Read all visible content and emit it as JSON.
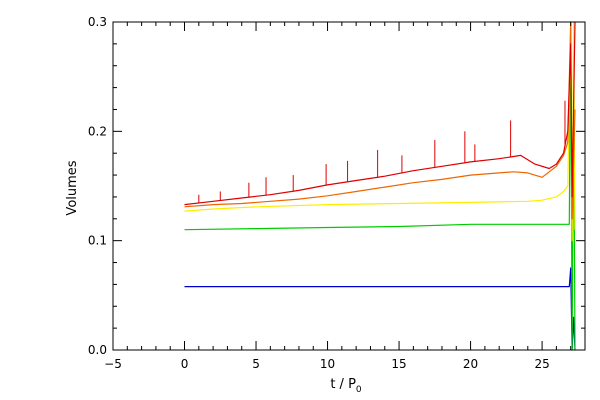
{
  "chart_data": {
    "type": "line",
    "title": "",
    "xlabel": "t / P",
    "xlabel_sub": "0",
    "ylabel": "Volumes",
    "xlim": [
      -5,
      28
    ],
    "ylim": [
      0.0,
      0.3
    ],
    "x_ticks": [
      -5,
      0,
      5,
      10,
      15,
      20,
      25
    ],
    "y_ticks": [
      0.0,
      0.1,
      0.2,
      0.3
    ],
    "x_tick_labels": [
      "−5",
      "0",
      "5",
      "10",
      "15",
      "20",
      "25"
    ],
    "y_tick_labels": [
      "0.0",
      "0.1",
      "0.2",
      "0.3"
    ],
    "x_minor_step": 1,
    "y_minor_step": 0.02,
    "grid": false,
    "legend": "none",
    "series": [
      {
        "color": "#0000cc",
        "x": [
          0,
          5,
          10,
          15,
          20,
          25,
          26.9,
          27.0,
          27.1,
          27.2,
          27.3
        ],
        "y": [
          0.058,
          0.058,
          0.058,
          0.058,
          0.058,
          0.058,
          0.058,
          0.075,
          0.0,
          0.03,
          0.0
        ]
      },
      {
        "color": "#00cc00",
        "x": [
          0,
          5,
          10,
          15,
          20,
          25,
          26.9,
          27.0,
          27.1,
          27.2,
          27.3
        ],
        "y": [
          0.11,
          0.111,
          0.112,
          0.113,
          0.115,
          0.115,
          0.115,
          0.3,
          0.0,
          0.25,
          0.0
        ]
      },
      {
        "color": "#ffee00",
        "x": [
          0,
          2,
          5,
          10,
          15,
          20,
          24,
          25,
          26,
          26.5,
          26.8,
          27.0,
          27.1,
          27.2,
          27.3
        ],
        "y": [
          0.127,
          0.129,
          0.131,
          0.133,
          0.134,
          0.135,
          0.136,
          0.137,
          0.14,
          0.145,
          0.15,
          0.3,
          0.1,
          0.3,
          0.11
        ]
      },
      {
        "color": "#ee6600",
        "x": [
          0,
          2,
          4,
          6,
          8,
          10,
          12,
          14,
          16,
          18,
          20,
          22,
          23,
          24,
          25,
          26,
          26.5,
          26.8,
          27.0,
          27.1,
          27.3
        ],
        "y": [
          0.131,
          0.133,
          0.134,
          0.136,
          0.138,
          0.141,
          0.145,
          0.149,
          0.153,
          0.156,
          0.16,
          0.162,
          0.163,
          0.162,
          0.158,
          0.168,
          0.178,
          0.19,
          0.3,
          0.12,
          0.22
        ]
      },
      {
        "color": "#dd0000",
        "x": [
          0,
          2,
          4,
          6,
          8,
          10,
          12,
          14,
          16,
          18,
          20,
          22,
          23.5,
          24.5,
          25.5,
          26,
          26.5,
          26.8,
          27.0,
          27.1,
          27.3
        ],
        "y": [
          0.133,
          0.136,
          0.139,
          0.142,
          0.146,
          0.151,
          0.155,
          0.159,
          0.164,
          0.168,
          0.172,
          0.175,
          0.178,
          0.17,
          0.166,
          0.17,
          0.18,
          0.2,
          0.28,
          0.14,
          0.3
        ]
      }
    ],
    "spikes": [
      {
        "color": "#dd0000",
        "x": 1.0,
        "y": 0.142
      },
      {
        "color": "#dd0000",
        "x": 2.5,
        "y": 0.145
      },
      {
        "color": "#dd0000",
        "x": 4.5,
        "y": 0.153
      },
      {
        "color": "#dd0000",
        "x": 5.7,
        "y": 0.158
      },
      {
        "color": "#dd0000",
        "x": 7.6,
        "y": 0.16
      },
      {
        "color": "#dd0000",
        "x": 9.9,
        "y": 0.17
      },
      {
        "color": "#dd0000",
        "x": 11.4,
        "y": 0.173
      },
      {
        "color": "#dd0000",
        "x": 13.5,
        "y": 0.183
      },
      {
        "color": "#dd0000",
        "x": 15.2,
        "y": 0.178
      },
      {
        "color": "#dd0000",
        "x": 17.5,
        "y": 0.192
      },
      {
        "color": "#dd0000",
        "x": 19.6,
        "y": 0.2
      },
      {
        "color": "#dd0000",
        "x": 20.3,
        "y": 0.188
      },
      {
        "color": "#dd0000",
        "x": 22.8,
        "y": 0.21
      },
      {
        "color": "#dd0000",
        "x": 26.6,
        "y": 0.228
      }
    ]
  }
}
